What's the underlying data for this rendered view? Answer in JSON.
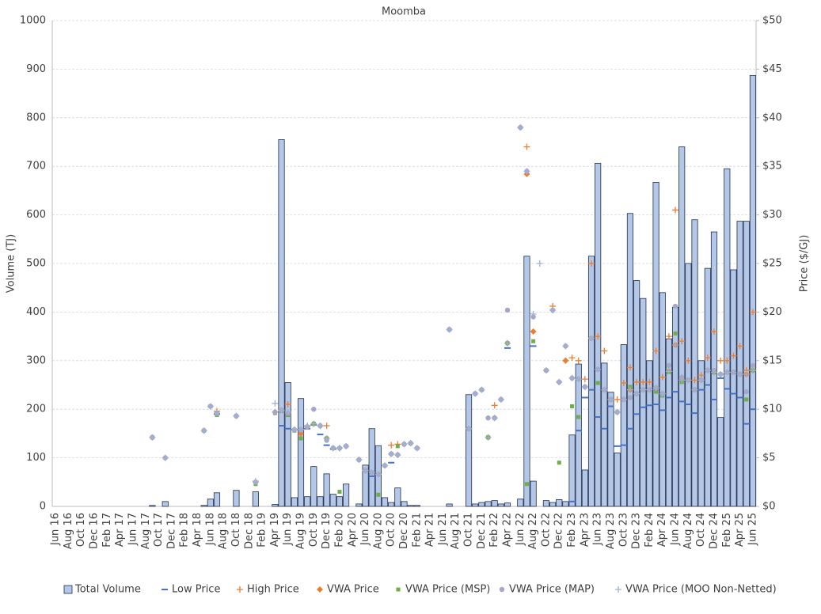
{
  "chart_data": {
    "type": "bar",
    "title": "Moomba",
    "y_label": "Volume (TJ)",
    "y2_label": "Price ($/GJ)",
    "categories": [
      "Jun 16",
      null,
      "Aug 16",
      null,
      "Oct 16",
      null,
      "Dec 16",
      null,
      "Feb 17",
      null,
      "Apr 17",
      null,
      "Jun 17",
      null,
      "Aug 17",
      null,
      "Oct 17",
      null,
      "Dec 17",
      null,
      "Feb 18",
      null,
      "Apr 18",
      null,
      "Jun 18",
      null,
      "Aug 18",
      null,
      "Oct 18",
      null,
      "Dec 18",
      null,
      "Feb 19",
      null,
      "Apr 19",
      null,
      "Jun 19",
      null,
      "Aug 19",
      null,
      "Oct 19",
      null,
      "Dec 19",
      null,
      "Feb 20",
      null,
      "Apr 20",
      null,
      "Jun 20",
      null,
      "Aug 20",
      null,
      "Oct 20",
      null,
      "Dec 20",
      null,
      "Feb 21",
      null,
      "Apr 21",
      null,
      "Jun 21",
      null,
      "Aug 21",
      null,
      "Oct 21",
      null,
      "Dec 21",
      null,
      "Feb 22",
      null,
      "Apr 22",
      null,
      "Jun 22",
      null,
      "Aug 22",
      null,
      "Oct 22",
      null,
      "Dec 22",
      null,
      "Feb 23",
      null,
      "Apr 23",
      null,
      "Jun 23",
      null,
      "Aug 23",
      null,
      "Oct 23",
      null,
      "Dec 23",
      null,
      "Feb 24",
      null,
      "Apr 24",
      null,
      "Jun 24",
      null,
      "Aug 24",
      null,
      "Oct 24",
      null,
      "Dec 24",
      null,
      "Feb 25",
      null,
      "Apr 25",
      null,
      "Jun 25"
    ],
    "ylim": [
      0,
      1000
    ],
    "yticks": [
      0,
      100,
      200,
      300,
      400,
      500,
      600,
      700,
      800,
      900,
      1000
    ],
    "y2lim": [
      0,
      50
    ],
    "y2ticks": [
      {
        "value": 0,
        "label": "$0"
      },
      {
        "value": 5,
        "label": "$5"
      },
      {
        "value": 10,
        "label": "$10"
      },
      {
        "value": 15,
        "label": "$15"
      },
      {
        "value": 20,
        "label": "$20"
      },
      {
        "value": 25,
        "label": "$25"
      },
      {
        "value": 30,
        "label": "$30"
      },
      {
        "value": 35,
        "label": "$35"
      },
      {
        "value": 40,
        "label": "$40"
      },
      {
        "value": 45,
        "label": "$45"
      },
      {
        "value": 50,
        "label": "$50"
      }
    ],
    "grid": true,
    "legend": "bottom",
    "series": [
      {
        "name": "Total Volume",
        "marker": "bar",
        "color": "#b4c7e7",
        "values": [
          0,
          0,
          0,
          0,
          0,
          0,
          0,
          0,
          0,
          0,
          0,
          0,
          0,
          0,
          0,
          2,
          0,
          10,
          0,
          0,
          0,
          0,
          0,
          2,
          15,
          28,
          0,
          0,
          33,
          0,
          0,
          30,
          0,
          0,
          4,
          755,
          255,
          18,
          222,
          20,
          82,
          20,
          67,
          25,
          20,
          46,
          0,
          5,
          85,
          160,
          125,
          18,
          8,
          38,
          10,
          2,
          2,
          0,
          0,
          0,
          0,
          5,
          0,
          0,
          230,
          5,
          8,
          10,
          12,
          5,
          7,
          0,
          15,
          515,
          52,
          0,
          12,
          8,
          14,
          10,
          147,
          293,
          75,
          515,
          706,
          295,
          235,
          110,
          333,
          603,
          465,
          428,
          300,
          667,
          440,
          345,
          410,
          740,
          500,
          590,
          300,
          490,
          565,
          183,
          695,
          487,
          587,
          587,
          887
        ]
      },
      {
        "name": "Low Price",
        "marker": "dash",
        "color": "#4472c4",
        "axis": "y2",
        "values": [
          null,
          null,
          null,
          null,
          null,
          null,
          null,
          null,
          null,
          null,
          null,
          null,
          null,
          null,
          null,
          null,
          null,
          null,
          null,
          null,
          null,
          null,
          null,
          null,
          null,
          9.5,
          null,
          null,
          null,
          null,
          null,
          null,
          null,
          null,
          null,
          8.3,
          8.0,
          7.9,
          null,
          8.0,
          8.4,
          7.4,
          6.3,
          5.9,
          null,
          null,
          null,
          null,
          null,
          3.1,
          null,
          null,
          4.5,
          null,
          null,
          null,
          null,
          null,
          null,
          null,
          null,
          null,
          null,
          null,
          null,
          null,
          null,
          null,
          null,
          null,
          16.3,
          null,
          null,
          null,
          16.5,
          null,
          null,
          null,
          null,
          null,
          0.5,
          7.8,
          11.2,
          12.0,
          9.2,
          8.0,
          10.3,
          6.2,
          6.3,
          8.0,
          9.5,
          10.2,
          10.4,
          10.5,
          9.9,
          11.2,
          11.8,
          10.8,
          10.5,
          9.6,
          12.0,
          12.5,
          11.0,
          13.2,
          12.1,
          11.6,
          11.2,
          8.5,
          10.0
        ]
      },
      {
        "name": "High Price",
        "marker": "plus",
        "color": "#ed7d31",
        "axis": "y2",
        "values": [
          null,
          null,
          null,
          null,
          null,
          null,
          null,
          null,
          null,
          null,
          null,
          null,
          null,
          null,
          null,
          null,
          null,
          null,
          null,
          null,
          null,
          null,
          null,
          null,
          null,
          9.8,
          null,
          null,
          null,
          null,
          null,
          null,
          null,
          null,
          null,
          null,
          10.5,
          null,
          7.9,
          8.3,
          null,
          8.3,
          8.3,
          null,
          6.0,
          null,
          null,
          null,
          null,
          null,
          null,
          null,
          6.3,
          6.4,
          null,
          null,
          null,
          null,
          null,
          null,
          null,
          null,
          null,
          null,
          null,
          null,
          null,
          null,
          10.4,
          null,
          null,
          null,
          null,
          37.0,
          null,
          null,
          null,
          20.6,
          null,
          15.0,
          15.3,
          15.0,
          13.1,
          25.0,
          17.5,
          16.0,
          null,
          11.0,
          12.7,
          14.3,
          12.8,
          12.8,
          12.8,
          16.0,
          13.3,
          17.5,
          30.5,
          17.0,
          15.0,
          13.0,
          13.5,
          15.3,
          18.0,
          15.0,
          15.0,
          15.5,
          16.5,
          14.0,
          20.0
        ]
      },
      {
        "name": "VWA Price",
        "marker": "diamond",
        "color": "#ed7d31",
        "axis": "y2",
        "values": [
          null,
          null,
          null,
          null,
          null,
          null,
          null,
          null,
          null,
          null,
          null,
          null,
          null,
          null,
          null,
          7.1,
          null,
          5.0,
          null,
          null,
          null,
          null,
          null,
          7.8,
          10.3,
          9.6,
          null,
          null,
          9.3,
          null,
          null,
          2.5,
          null,
          null,
          9.7,
          9.9,
          9.6,
          7.9,
          7.5,
          8.2,
          8.5,
          8.3,
          7.0,
          6.0,
          6.0,
          6.2,
          null,
          4.8,
          3.7,
          3.5,
          3.3,
          4.2,
          5.4,
          5.3,
          6.4,
          6.5,
          6.0,
          null,
          null,
          null,
          null,
          18.2,
          null,
          null,
          8.0,
          11.6,
          12.0,
          7.1,
          9.1,
          11.0,
          16.8,
          null,
          39.0,
          34.2,
          18.0,
          null,
          14.0,
          20.2,
          12.8,
          15.0,
          13.2,
          13.1,
          12.3,
          17.3,
          14.1,
          12.0,
          11.0,
          9.7,
          11.0,
          12.0,
          11.6,
          12.0,
          12.0,
          12.2,
          11.6,
          13.9,
          16.6,
          13.0,
          13.0,
          12.0,
          13.0,
          14.0,
          13.8,
          13.6,
          13.8,
          13.8,
          13.6,
          13.6,
          14.0
        ]
      },
      {
        "name": "VWA Price (MSP)",
        "marker": "square",
        "color": "#70ad47",
        "axis": "y2",
        "values": [
          null,
          null,
          null,
          null,
          null,
          null,
          null,
          null,
          null,
          null,
          null,
          null,
          null,
          null,
          null,
          7.1,
          null,
          null,
          null,
          null,
          null,
          null,
          null,
          7.8,
          10.3,
          9.4,
          null,
          null,
          9.3,
          null,
          null,
          2.3,
          null,
          null,
          9.6,
          9.8,
          9.4,
          7.8,
          7.0,
          8.2,
          8.5,
          8.3,
          7.0,
          6.0,
          1.5,
          6.2,
          null,
          4.8,
          3.7,
          3.5,
          1.2,
          4.2,
          5.4,
          6.2,
          6.4,
          6.5,
          6.0,
          null,
          null,
          null,
          null,
          18.2,
          null,
          null,
          8.0,
          11.6,
          12.0,
          7.1,
          9.1,
          11.0,
          16.8,
          null,
          null,
          2.3,
          17.0,
          null,
          14.0,
          null,
          4.5,
          null,
          10.3,
          9.2,
          12.3,
          17.3,
          12.7,
          12.0,
          11.0,
          9.7,
          11.0,
          12.3,
          11.6,
          12.0,
          12.0,
          11.8,
          11.4,
          13.8,
          17.8,
          12.8,
          13.0,
          12.0,
          13.0,
          14.0,
          13.8,
          13.6,
          13.8,
          13.8,
          13.6,
          11.0,
          14.0
        ]
      },
      {
        "name": "VWA Price (MAP)",
        "marker": "circle",
        "color": "#a6a6cc",
        "axis": "y2",
        "values": [
          null,
          null,
          null,
          null,
          null,
          null,
          null,
          null,
          null,
          null,
          null,
          null,
          null,
          null,
          null,
          7.1,
          null,
          5.0,
          null,
          null,
          null,
          null,
          null,
          7.8,
          10.3,
          9.6,
          null,
          null,
          9.3,
          null,
          null,
          2.5,
          null,
          null,
          9.7,
          9.9,
          9.6,
          7.9,
          7.9,
          8.2,
          10.0,
          8.3,
          6.8,
          6.0,
          6.0,
          6.2,
          null,
          4.8,
          3.7,
          3.5,
          3.3,
          4.2,
          5.4,
          5.3,
          6.4,
          6.5,
          6.0,
          null,
          null,
          null,
          null,
          18.2,
          null,
          null,
          8.0,
          11.6,
          12.0,
          9.1,
          9.1,
          11.0,
          20.2,
          null,
          39.0,
          34.5,
          19.5,
          null,
          14.0,
          20.2,
          12.8,
          16.5,
          13.2,
          13.1,
          12.3,
          17.3,
          14.1,
          12.0,
          11.0,
          9.7,
          11.0,
          11.2,
          11.6,
          12.0,
          12.0,
          12.2,
          11.6,
          14.5,
          20.6,
          13.3,
          13.0,
          12.0,
          13.0,
          14.0,
          14.0,
          13.6,
          13.8,
          13.8,
          13.6,
          11.8,
          14.5
        ]
      },
      {
        "name": "VWA Price (MOO Non-Netted)",
        "marker": "plus",
        "color": "#9fb3d1",
        "axis": "y2",
        "values": [
          null,
          null,
          null,
          null,
          null,
          null,
          null,
          null,
          null,
          null,
          null,
          null,
          null,
          null,
          null,
          7.1,
          null,
          5.0,
          null,
          null,
          null,
          null,
          null,
          7.8,
          10.3,
          9.6,
          null,
          null,
          9.3,
          null,
          null,
          2.6,
          null,
          null,
          10.6,
          9.9,
          9.7,
          7.9,
          7.9,
          8.3,
          8.5,
          8.3,
          7.0,
          6.0,
          6.0,
          6.2,
          null,
          4.8,
          3.7,
          3.5,
          3.3,
          4.2,
          5.4,
          5.3,
          6.4,
          6.5,
          6.0,
          null,
          null,
          null,
          null,
          18.2,
          null,
          null,
          8.0,
          11.6,
          12.0,
          7.1,
          9.1,
          11.0,
          16.8,
          null,
          39.0,
          34.5,
          19.8,
          25.0,
          14.0,
          20.2,
          12.8,
          16.5,
          13.2,
          13.1,
          12.3,
          17.3,
          14.1,
          12.0,
          11.0,
          9.7,
          11.0,
          12.0,
          11.6,
          12.0,
          12.0,
          12.2,
          11.6,
          13.9,
          16.6,
          13.0,
          13.0,
          12.0,
          13.0,
          14.0,
          13.8,
          13.6,
          13.8,
          13.8,
          13.6,
          13.6,
          14.0
        ]
      }
    ]
  }
}
